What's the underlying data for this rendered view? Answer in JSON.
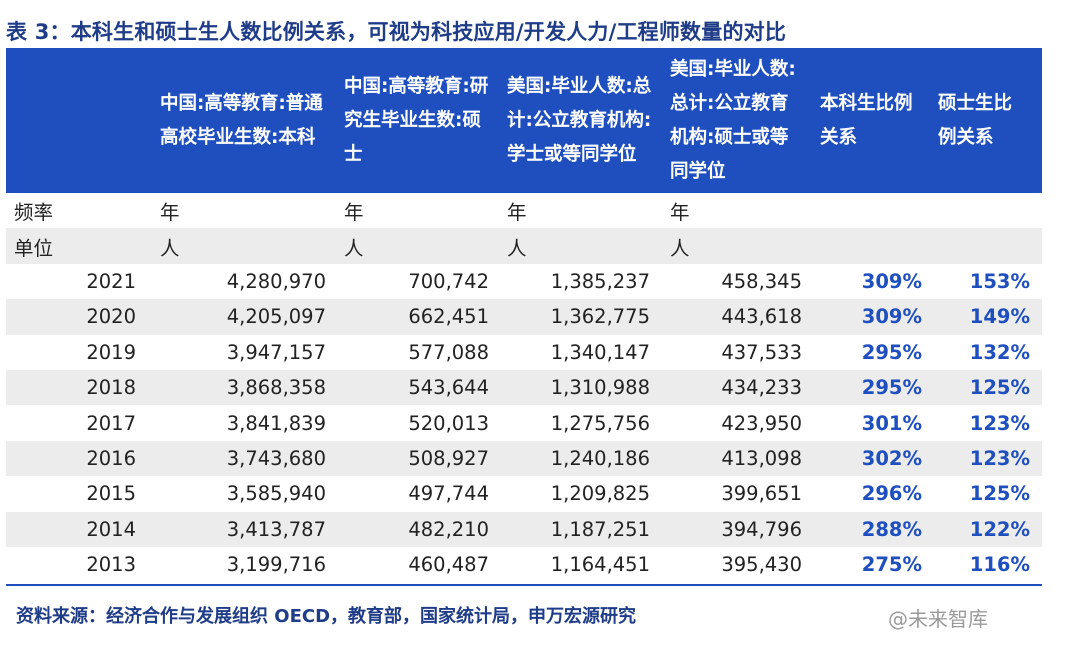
{
  "title": "表 3：本科生和硕士生人数比例关系，可视为科技应用/开发人力/工程师数量的对比",
  "headers": [
    "中国:高等教育:普通高校毕业生数:本科",
    "中国:高等教育:研究生毕业生数:硕士",
    "美国:毕业人数:总计:公立教育机构:学士或等同学位",
    "美国:毕业人数:总计:公立教育机构:硕士或等同学位",
    "本科生比例关系",
    "硕士生比例关系"
  ],
  "meta_rows": [
    {
      "label": "频率",
      "values": [
        "年",
        "年",
        "年",
        "年"
      ]
    },
    {
      "label": "单位",
      "values": [
        "人",
        "人",
        "人",
        "人"
      ]
    }
  ],
  "rows": [
    {
      "year": "2021",
      "cn_bachelor": "4,280,970",
      "cn_master": "700,742",
      "us_bachelor": "1,385,237",
      "us_master": "458,345",
      "bachelor_ratio": "309%",
      "master_ratio": "153%"
    },
    {
      "year": "2020",
      "cn_bachelor": "4,205,097",
      "cn_master": "662,451",
      "us_bachelor": "1,362,775",
      "us_master": "443,618",
      "bachelor_ratio": "309%",
      "master_ratio": "149%"
    },
    {
      "year": "2019",
      "cn_bachelor": "3,947,157",
      "cn_master": "577,088",
      "us_bachelor": "1,340,147",
      "us_master": "437,533",
      "bachelor_ratio": "295%",
      "master_ratio": "132%"
    },
    {
      "year": "2018",
      "cn_bachelor": "3,868,358",
      "cn_master": "543,644",
      "us_bachelor": "1,310,988",
      "us_master": "434,233",
      "bachelor_ratio": "295%",
      "master_ratio": "125%"
    },
    {
      "year": "2017",
      "cn_bachelor": "3,841,839",
      "cn_master": "520,013",
      "us_bachelor": "1,275,756",
      "us_master": "423,950",
      "bachelor_ratio": "301%",
      "master_ratio": "123%"
    },
    {
      "year": "2016",
      "cn_bachelor": "3,743,680",
      "cn_master": "508,927",
      "us_bachelor": "1,240,186",
      "us_master": "413,098",
      "bachelor_ratio": "302%",
      "master_ratio": "123%"
    },
    {
      "year": "2015",
      "cn_bachelor": "3,585,940",
      "cn_master": "497,744",
      "us_bachelor": "1,209,825",
      "us_master": "399,651",
      "bachelor_ratio": "296%",
      "master_ratio": "125%"
    },
    {
      "year": "2014",
      "cn_bachelor": "3,413,787",
      "cn_master": "482,210",
      "us_bachelor": "1,187,251",
      "us_master": "394,796",
      "bachelor_ratio": "288%",
      "master_ratio": "122%"
    },
    {
      "year": "2013",
      "cn_bachelor": "3,199,716",
      "cn_master": "460,487",
      "us_bachelor": "1,164,451",
      "us_master": "395,430",
      "bachelor_ratio": "275%",
      "master_ratio": "116%"
    }
  ],
  "source": "资料来源：经济合作与发展组织 OECD，教育部，国家统计局，申万宏源研究",
  "watermark": "@未来智库",
  "colors": {
    "accent": "#1f4fbf",
    "title": "#1f3c88",
    "shade": "#ececec"
  }
}
